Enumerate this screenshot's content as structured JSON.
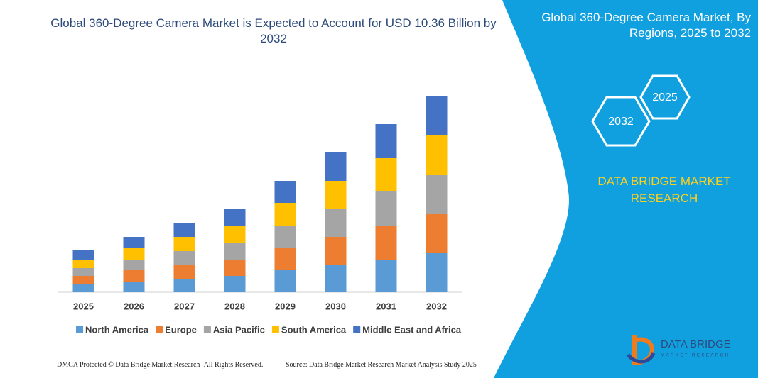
{
  "chart_data": {
    "type": "stacked-bar",
    "title": "Global 360-Degree Camera Market is Expected to Account for USD 10.36 Billion by 2032",
    "categories": [
      "2025",
      "2026",
      "2027",
      "2028",
      "2029",
      "2030",
      "2031",
      "2032"
    ],
    "series": [
      {
        "name": "North America",
        "color": "#5b9bd5",
        "values": [
          12,
          15,
          19,
          23,
          31,
          38,
          46,
          55
        ]
      },
      {
        "name": "Europe",
        "color": "#ed7d31",
        "values": [
          11,
          16,
          19,
          23,
          31,
          40,
          48,
          55
        ]
      },
      {
        "name": "Asia Pacific",
        "color": "#a5a5a5",
        "values": [
          11,
          15,
          20,
          24,
          32,
          40,
          48,
          55
        ]
      },
      {
        "name": "South America",
        "color": "#ffc000",
        "values": [
          12,
          16,
          20,
          24,
          32,
          39,
          47,
          56
        ]
      },
      {
        "name": "Middle East and Africa",
        "color": "#4472c4",
        "values": [
          13,
          16,
          20,
          24,
          31,
          40,
          48,
          55
        ]
      }
    ]
  },
  "panel": {
    "title": "Global 360-Degree Camera Market, By Regions, 2025 to 2032",
    "hex_start": "2025",
    "hex_end": "2032",
    "brand": "DATA BRIDGE MARKET RESEARCH"
  },
  "logo": {
    "name": "DATA BRIDGE",
    "tagline": "MARKET RESEARCH"
  },
  "footer": {
    "left": "DMCA Protected © Data Bridge Market Research- All Rights Reserved.",
    "right": "Source: Data Bridge Market Research Market Analysis Study 2025"
  }
}
